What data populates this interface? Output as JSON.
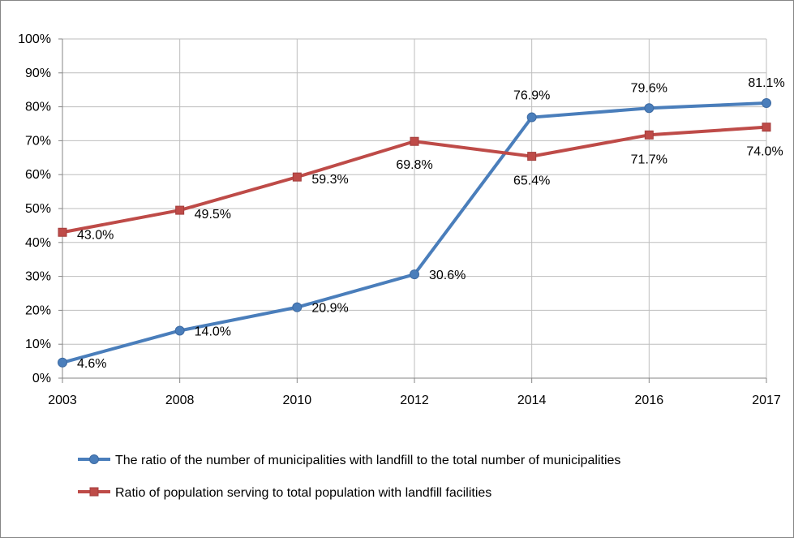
{
  "chart_data": {
    "type": "line",
    "categories": [
      "2003",
      "2008",
      "2010",
      "2012",
      "2014",
      "2016",
      "2017"
    ],
    "ylim": [
      0,
      100
    ],
    "y_tick_labels": [
      "0%",
      "10%",
      "20%",
      "30%",
      "40%",
      "50%",
      "60%",
      "70%",
      "80%",
      "90%",
      "100%"
    ],
    "grid": true,
    "legend_position": "bottom",
    "series": [
      {
        "name": "The ratio of the number of municipalities with landfill to the total number of municipalities",
        "color": "#4a7ebb",
        "marker": "circle",
        "values": [
          4.6,
          14.0,
          20.9,
          30.6,
          76.9,
          79.6,
          81.1
        ],
        "labels": [
          "4.6%",
          "14.0%",
          "20.9%",
          "30.6%",
          "76.9%",
          "79.6%",
          "81.1%"
        ]
      },
      {
        "name": "Ratio of population serving to total population with landfill facilities",
        "color": "#be4b48",
        "marker": "square",
        "values": [
          43.0,
          49.5,
          59.3,
          69.8,
          65.4,
          71.7,
          74.0
        ],
        "labels": [
          "43.0%",
          "49.5%",
          "59.3%",
          "69.8%",
          "65.4%",
          "71.7%",
          "74.0%"
        ]
      }
    ]
  }
}
